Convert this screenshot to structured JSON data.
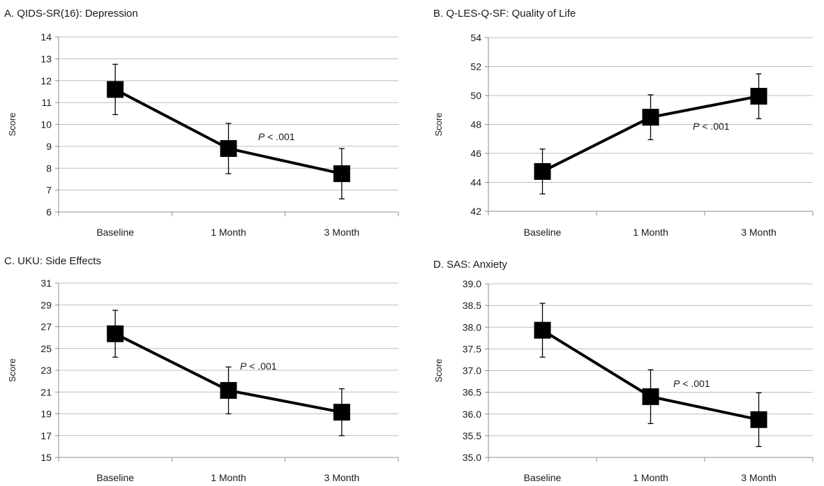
{
  "chart_data": [
    {
      "type": "line",
      "title": "A. QIDS-SR(16): Depression",
      "ylabel": "Score",
      "xlabel": "",
      "categories": [
        "Baseline",
        "1 Month",
        "3 Month"
      ],
      "y_ticks": [
        "14",
        "13",
        "12",
        "11",
        "10",
        "9",
        "8",
        "7",
        "6"
      ],
      "ylim": [
        6,
        14
      ],
      "grid": true,
      "series": [
        {
          "values": [
            11.6,
            8.9,
            7.75
          ],
          "err_low": [
            10.45,
            7.75,
            6.6
          ],
          "err_high": [
            12.75,
            10.05,
            8.9
          ]
        }
      ],
      "annotation": {
        "italic": "P",
        "rest": " < .001"
      }
    },
    {
      "type": "line",
      "title": "B. Q-LES-Q-SF: Quality of Life",
      "ylabel": "Score",
      "xlabel": "",
      "categories": [
        "Baseline",
        "1 Month",
        "3 Month"
      ],
      "y_ticks": [
        "54",
        "52",
        "50",
        "48",
        "46",
        "44",
        "42"
      ],
      "ylim": [
        42,
        54
      ],
      "grid": true,
      "series": [
        {
          "values": [
            44.75,
            48.5,
            49.95
          ],
          "err_low": [
            43.2,
            46.95,
            48.4
          ],
          "err_high": [
            46.3,
            50.05,
            51.5
          ]
        }
      ],
      "annotation": {
        "italic": "P",
        "rest": " < .001"
      }
    },
    {
      "type": "line",
      "title": "C. UKU: Side Effects",
      "ylabel": "Score",
      "xlabel": "",
      "categories": [
        "Baseline",
        "1 Month",
        "3 Month"
      ],
      "y_ticks": [
        "31",
        "29",
        "27",
        "25",
        "23",
        "21",
        "19",
        "17",
        "15"
      ],
      "ylim": [
        15,
        31
      ],
      "grid": true,
      "series": [
        {
          "values": [
            26.35,
            21.15,
            19.15
          ],
          "err_low": [
            24.2,
            19.0,
            17.0
          ],
          "err_high": [
            28.5,
            23.3,
            21.3
          ]
        }
      ],
      "annotation": {
        "italic": "P",
        "rest": " < .001"
      }
    },
    {
      "type": "line",
      "title": "D. SAS: Anxiety",
      "ylabel": "Score",
      "xlabel": "",
      "categories": [
        "Baseline",
        "1 Month",
        "3 Month"
      ],
      "y_ticks": [
        "39.0",
        "38.5",
        "38.0",
        "37.5",
        "37.0",
        "36.5",
        "36.0",
        "35.5",
        "35.0"
      ],
      "ylim": [
        35,
        39
      ],
      "grid": true,
      "series": [
        {
          "values": [
            37.93,
            36.4,
            35.87
          ],
          "err_low": [
            37.31,
            35.78,
            35.25
          ],
          "err_high": [
            38.55,
            37.02,
            36.49
          ]
        }
      ],
      "annotation": {
        "italic": "P",
        "rest": " < .001"
      }
    }
  ]
}
